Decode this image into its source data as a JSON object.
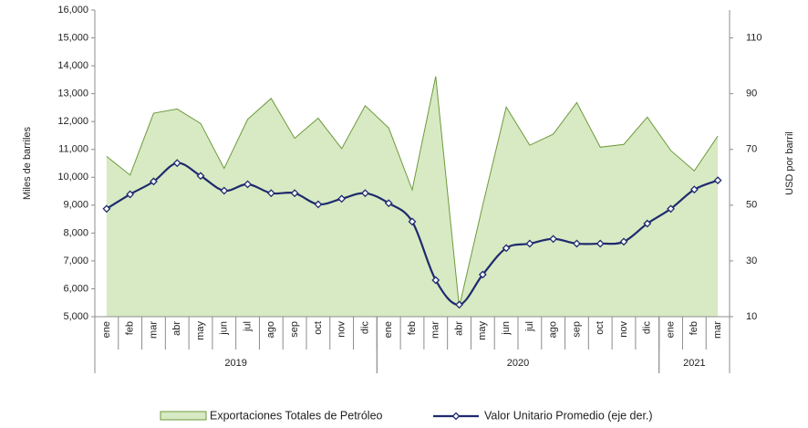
{
  "chart_data": {
    "type": "area-line",
    "categories": [
      "ene",
      "feb",
      "mar",
      "abr",
      "may",
      "jun",
      "jul",
      "ago",
      "sep",
      "oct",
      "nov",
      "dic",
      "ene",
      "feb",
      "mar",
      "abr",
      "may",
      "jun",
      "jul",
      "ago",
      "sep",
      "oct",
      "nov",
      "dic",
      "ene",
      "feb",
      "mar"
    ],
    "year_groups": [
      {
        "label": "2019",
        "span": 12
      },
      {
        "label": "2020",
        "span": 12
      },
      {
        "label": "2021",
        "span": 3
      }
    ],
    "ylabel": "Miles de barriles",
    "y2label": "USD por barril",
    "ylim": [
      5000,
      16000
    ],
    "yticks": [
      {
        "value": 5000,
        "label": "5,000"
      },
      {
        "value": 6000,
        "label": "6,000"
      },
      {
        "value": 7000,
        "label": "7,000"
      },
      {
        "value": 8000,
        "label": "8,000"
      },
      {
        "value": 9000,
        "label": "9,000"
      },
      {
        "value": 10000,
        "label": "10,000"
      },
      {
        "value": 11000,
        "label": "11,000"
      },
      {
        "value": 12000,
        "label": "12,000"
      },
      {
        "value": 13000,
        "label": "13,000"
      },
      {
        "value": 14000,
        "label": "14,000"
      },
      {
        "value": 15000,
        "label": "15,000"
      },
      {
        "value": 16000,
        "label": "16,000"
      }
    ],
    "y2lim": [
      10,
      120
    ],
    "y2ticks": [
      10,
      30,
      50,
      70,
      90,
      110
    ],
    "series": [
      {
        "name": "Exportaciones Totales de Petróleo",
        "kind": "area",
        "color": "#d7eac3",
        "stroke": "#6e9a3c",
        "values": [
          10750,
          10080,
          12300,
          12450,
          11930,
          10320,
          12080,
          12830,
          11400,
          12120,
          11030,
          12570,
          11770,
          9550,
          13620,
          5350,
          9000,
          12520,
          11150,
          11550,
          12680,
          11080,
          11180,
          12160,
          10960,
          10230,
          11480
        ]
      },
      {
        "name": "Valor Unitario Promedio (eje der.)",
        "kind": "line",
        "axis": "y2",
        "color": "#1f2a6e",
        "values": [
          48.7,
          53.9,
          58.5,
          65.1,
          60.5,
          55.2,
          57.5,
          54.3,
          54.3,
          50.3,
          52.3,
          54.3,
          50.7,
          44.1,
          23.1,
          14.3,
          25.1,
          34.6,
          36.2,
          37.9,
          36.2,
          36.2,
          36.9,
          43.4,
          48.7,
          55.6,
          58.9
        ]
      }
    ]
  }
}
